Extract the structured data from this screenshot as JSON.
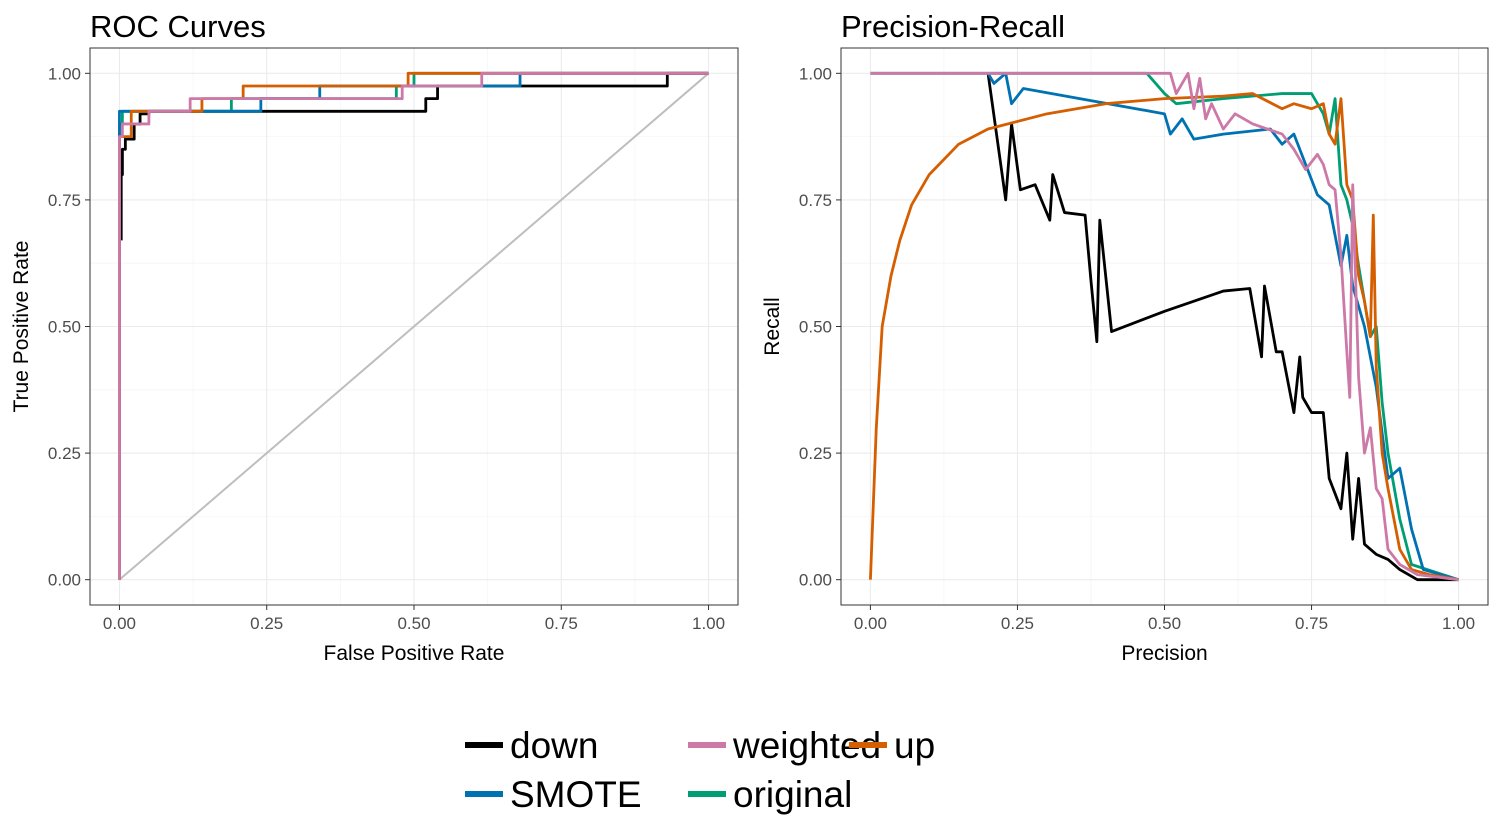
{
  "legend": {
    "position": "bottom",
    "entries": [
      {
        "label": "down",
        "color": "#000000"
      },
      {
        "label": "SMOTE",
        "color": "#0072B2"
      },
      {
        "label": "weighted",
        "color": "#CC79A7"
      },
      {
        "label": "original",
        "color": "#009E73"
      },
      {
        "label": "up",
        "color": "#D55E00"
      }
    ]
  },
  "chart_data": [
    {
      "type": "line",
      "title": "ROC Curves",
      "xlabel": "False Positive Rate",
      "ylabel": "True Positive Rate",
      "xlim": [
        -0.05,
        1.05
      ],
      "ylim": [
        -0.05,
        1.05
      ],
      "xticks": [
        0,
        0.25,
        0.5,
        0.75,
        1
      ],
      "yticks": [
        0,
        0.25,
        0.5,
        0.75,
        1
      ],
      "xtick_labels": [
        "0.00",
        "0.25",
        "0.50",
        "0.75",
        "1.00"
      ],
      "ytick_labels": [
        "0.00",
        "0.25",
        "0.50",
        "0.75",
        "1.00"
      ],
      "grid": true,
      "reference_line": {
        "x": [
          0,
          1
        ],
        "y": [
          0,
          1
        ],
        "color": "#BEBEBE"
      },
      "series": [
        {
          "name": "down",
          "color": "#000000",
          "x": [
            0.003,
            0.003,
            0.005,
            0.005,
            0.01,
            0.01,
            0.025,
            0.025,
            0.035,
            0.035,
            0.05,
            0.05,
            0.08,
            0.08,
            0.19,
            0.19,
            0.52,
            0.52,
            0.54,
            0.54,
            0.93,
            0.93,
            1.0
          ],
          "y": [
            0.67,
            0.8,
            0.8,
            0.85,
            0.85,
            0.87,
            0.87,
            0.9,
            0.9,
            0.92,
            0.92,
            0.925,
            0.925,
            0.925,
            0.925,
            0.925,
            0.925,
            0.95,
            0.95,
            0.975,
            0.975,
            1.0,
            1.0
          ]
        },
        {
          "name": "original",
          "color": "#009E73",
          "x": [
            0.0,
            0.0,
            0.005,
            0.005,
            0.12,
            0.12,
            0.19,
            0.19,
            0.47,
            0.47,
            0.5,
            0.5,
            1.0
          ],
          "y": [
            0.0,
            0.9,
            0.9,
            0.925,
            0.925,
            0.925,
            0.925,
            0.95,
            0.95,
            0.975,
            0.975,
            1.0,
            1.0
          ]
        },
        {
          "name": "SMOTE",
          "color": "#0072B2",
          "x": [
            0.0,
            0.0,
            0.01,
            0.01,
            0.24,
            0.24,
            0.34,
            0.34,
            0.68,
            0.68,
            1.0
          ],
          "y": [
            0.0,
            0.925,
            0.925,
            0.925,
            0.925,
            0.95,
            0.95,
            0.975,
            0.975,
            1.0,
            1.0
          ]
        },
        {
          "name": "up",
          "color": "#D55E00",
          "x": [
            0.0,
            0.0,
            0.02,
            0.02,
            0.14,
            0.14,
            0.21,
            0.21,
            0.49,
            0.49,
            1.0
          ],
          "y": [
            0.0,
            0.875,
            0.875,
            0.925,
            0.925,
            0.95,
            0.95,
            0.975,
            0.975,
            1.0,
            1.0
          ]
        },
        {
          "name": "weighted",
          "color": "#CC79A7",
          "x": [
            0.0,
            0.0,
            0.005,
            0.005,
            0.05,
            0.05,
            0.12,
            0.12,
            0.48,
            0.48,
            0.615,
            0.615,
            1.0
          ],
          "y": [
            0.0,
            0.875,
            0.875,
            0.9,
            0.9,
            0.925,
            0.925,
            0.95,
            0.95,
            0.975,
            0.975,
            1.0,
            1.0
          ]
        }
      ]
    },
    {
      "type": "line",
      "title": "Precision-Recall",
      "xlabel": "Precision",
      "ylabel": "Recall",
      "xlim": [
        -0.05,
        1.05
      ],
      "ylim": [
        -0.05,
        1.05
      ],
      "xticks": [
        0,
        0.25,
        0.5,
        0.75,
        1
      ],
      "yticks": [
        0,
        0.25,
        0.5,
        0.75,
        1
      ],
      "xtick_labels": [
        "0.00",
        "0.25",
        "0.50",
        "0.75",
        "1.00"
      ],
      "ytick_labels": [
        "0.00",
        "0.25",
        "0.50",
        "0.75",
        "1.00"
      ],
      "grid": true,
      "series": [
        {
          "name": "down",
          "color": "#000000",
          "x": [
            0.2,
            0.23,
            0.24,
            0.255,
            0.28,
            0.305,
            0.31,
            0.33,
            0.365,
            0.375,
            0.385,
            0.39,
            0.41,
            0.5,
            0.55,
            0.6,
            0.645,
            0.665,
            0.67,
            0.69,
            0.7,
            0.72,
            0.73,
            0.735,
            0.75,
            0.77,
            0.78,
            0.8,
            0.81,
            0.82,
            0.83,
            0.84,
            0.86,
            0.88,
            0.9,
            0.93,
            1.0
          ],
          "y": [
            1.0,
            0.75,
            0.9,
            0.77,
            0.78,
            0.71,
            0.8,
            0.725,
            0.72,
            0.59,
            0.47,
            0.71,
            0.49,
            0.53,
            0.55,
            0.57,
            0.575,
            0.44,
            0.58,
            0.45,
            0.45,
            0.33,
            0.44,
            0.36,
            0.33,
            0.33,
            0.2,
            0.14,
            0.25,
            0.08,
            0.2,
            0.07,
            0.05,
            0.04,
            0.02,
            0.0,
            0.0
          ]
        },
        {
          "name": "original",
          "color": "#009E73",
          "x": [
            0.0,
            0.47,
            0.5,
            0.52,
            0.6,
            0.7,
            0.75,
            0.77,
            0.78,
            0.79,
            0.8,
            0.81,
            0.82,
            0.83,
            0.84,
            0.85,
            0.86,
            0.87,
            0.88,
            0.9,
            0.92,
            1.0
          ],
          "y": [
            1.0,
            1.0,
            0.96,
            0.94,
            0.95,
            0.96,
            0.96,
            0.92,
            0.88,
            0.95,
            0.78,
            0.75,
            0.7,
            0.62,
            0.55,
            0.48,
            0.5,
            0.35,
            0.25,
            0.12,
            0.03,
            0.0
          ]
        },
        {
          "name": "SMOTE",
          "color": "#0072B2",
          "x": [
            0.2,
            0.21,
            0.23,
            0.24,
            0.26,
            0.5,
            0.51,
            0.53,
            0.55,
            0.6,
            0.68,
            0.7,
            0.72,
            0.74,
            0.76,
            0.78,
            0.8,
            0.81,
            0.82,
            0.84,
            0.86,
            0.88,
            0.9,
            0.92,
            0.94,
            1.0
          ],
          "y": [
            1.0,
            0.98,
            1.0,
            0.94,
            0.97,
            0.92,
            0.88,
            0.91,
            0.87,
            0.88,
            0.89,
            0.86,
            0.88,
            0.82,
            0.76,
            0.74,
            0.62,
            0.68,
            0.58,
            0.5,
            0.38,
            0.2,
            0.22,
            0.1,
            0.02,
            0.0
          ]
        },
        {
          "name": "up",
          "color": "#D55E00",
          "x": [
            0.0,
            0.01,
            0.02,
            0.035,
            0.05,
            0.07,
            0.1,
            0.15,
            0.2,
            0.3,
            0.4,
            0.5,
            0.6,
            0.65,
            0.7,
            0.72,
            0.75,
            0.77,
            0.78,
            0.79,
            0.8,
            0.81,
            0.82,
            0.83,
            0.84,
            0.85,
            0.855,
            0.86,
            0.87,
            0.88,
            0.9,
            0.92,
            0.95,
            1.0
          ],
          "y": [
            0.0,
            0.3,
            0.5,
            0.6,
            0.67,
            0.74,
            0.8,
            0.86,
            0.89,
            0.92,
            0.94,
            0.95,
            0.955,
            0.96,
            0.93,
            0.94,
            0.93,
            0.94,
            0.88,
            0.86,
            0.95,
            0.78,
            0.75,
            0.6,
            0.55,
            0.48,
            0.72,
            0.42,
            0.25,
            0.18,
            0.06,
            0.02,
            0.01,
            0.0
          ]
        },
        {
          "name": "weighted",
          "color": "#CC79A7",
          "x": [
            0.0,
            0.51,
            0.52,
            0.54,
            0.55,
            0.56,
            0.57,
            0.58,
            0.6,
            0.62,
            0.65,
            0.7,
            0.72,
            0.74,
            0.76,
            0.77,
            0.78,
            0.79,
            0.8,
            0.81,
            0.815,
            0.82,
            0.83,
            0.84,
            0.85,
            0.86,
            0.87,
            0.88,
            0.9,
            0.93,
            1.0
          ],
          "y": [
            1.0,
            1.0,
            0.96,
            1.0,
            0.93,
            0.99,
            0.91,
            0.94,
            0.89,
            0.92,
            0.9,
            0.88,
            0.85,
            0.81,
            0.84,
            0.82,
            0.78,
            0.77,
            0.64,
            0.45,
            0.36,
            0.78,
            0.4,
            0.25,
            0.3,
            0.18,
            0.16,
            0.06,
            0.03,
            0.01,
            0.0
          ]
        }
      ]
    }
  ]
}
